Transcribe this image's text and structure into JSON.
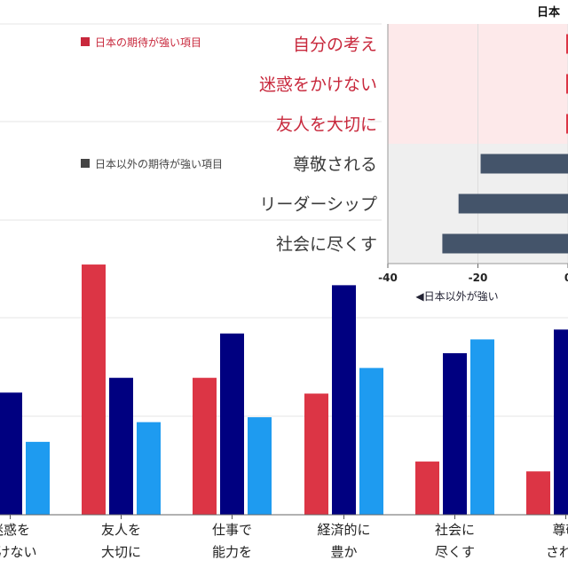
{
  "chart_data": [
    {
      "type": "bar",
      "orientation": "horizontal",
      "title": "日本",
      "categories": [
        "自分の考え",
        "迷惑をかけない",
        "友人を大切に",
        "尊敬される",
        "リーダーシップ",
        "社会に尽くす"
      ],
      "values": [
        null,
        null,
        null,
        -19.4,
        -24.3,
        -27.9
      ],
      "category_colors": [
        "#c8283c",
        "#c8283c",
        "#c8283c",
        "#3b3b3b",
        "#3b3b3b",
        "#3b3b3b"
      ],
      "xlim": [
        -40,
        0
      ],
      "xticks": [
        "-40",
        "-20",
        "0"
      ],
      "xtick_values": [
        -40,
        -20,
        0
      ],
      "xlabel": "◀日本以外が強い",
      "legend": [
        {
          "label": "日本の期待が強い項目",
          "color": "#c8283c"
        },
        {
          "label": "日本以外の期待が強い項目",
          "color": "#444444"
        }
      ],
      "bar_color": "#44546a",
      "region_colors": {
        "japan": "#fde9ea",
        "other": "#efefef"
      },
      "grid": true
    },
    {
      "type": "bar",
      "categories": [
        [
          "迷惑を",
          "かけない"
        ],
        [
          "友人を",
          "大切に"
        ],
        [
          "仕事で",
          "能力を"
        ],
        [
          "経済的に",
          "豊か"
        ],
        [
          "社会に",
          "尽くす"
        ],
        [
          "尊敬",
          "される"
        ]
      ],
      "series": [
        {
          "values": [
            null,
            25.4,
            13.9,
            12.3,
            5.4,
            4.4
          ],
          "color": "#dc3545"
        },
        {
          "values": [
            12.4,
            13.9,
            18.4,
            23.3,
            16.4,
            18.8
          ],
          "color": "#000080"
        },
        {
          "values": [
            7.4,
            9.4,
            9.9,
            14.9,
            17.8,
            null
          ],
          "color": "#1e9bf0"
        }
      ],
      "ylim": [
        0,
        30
      ],
      "grid": true
    }
  ]
}
